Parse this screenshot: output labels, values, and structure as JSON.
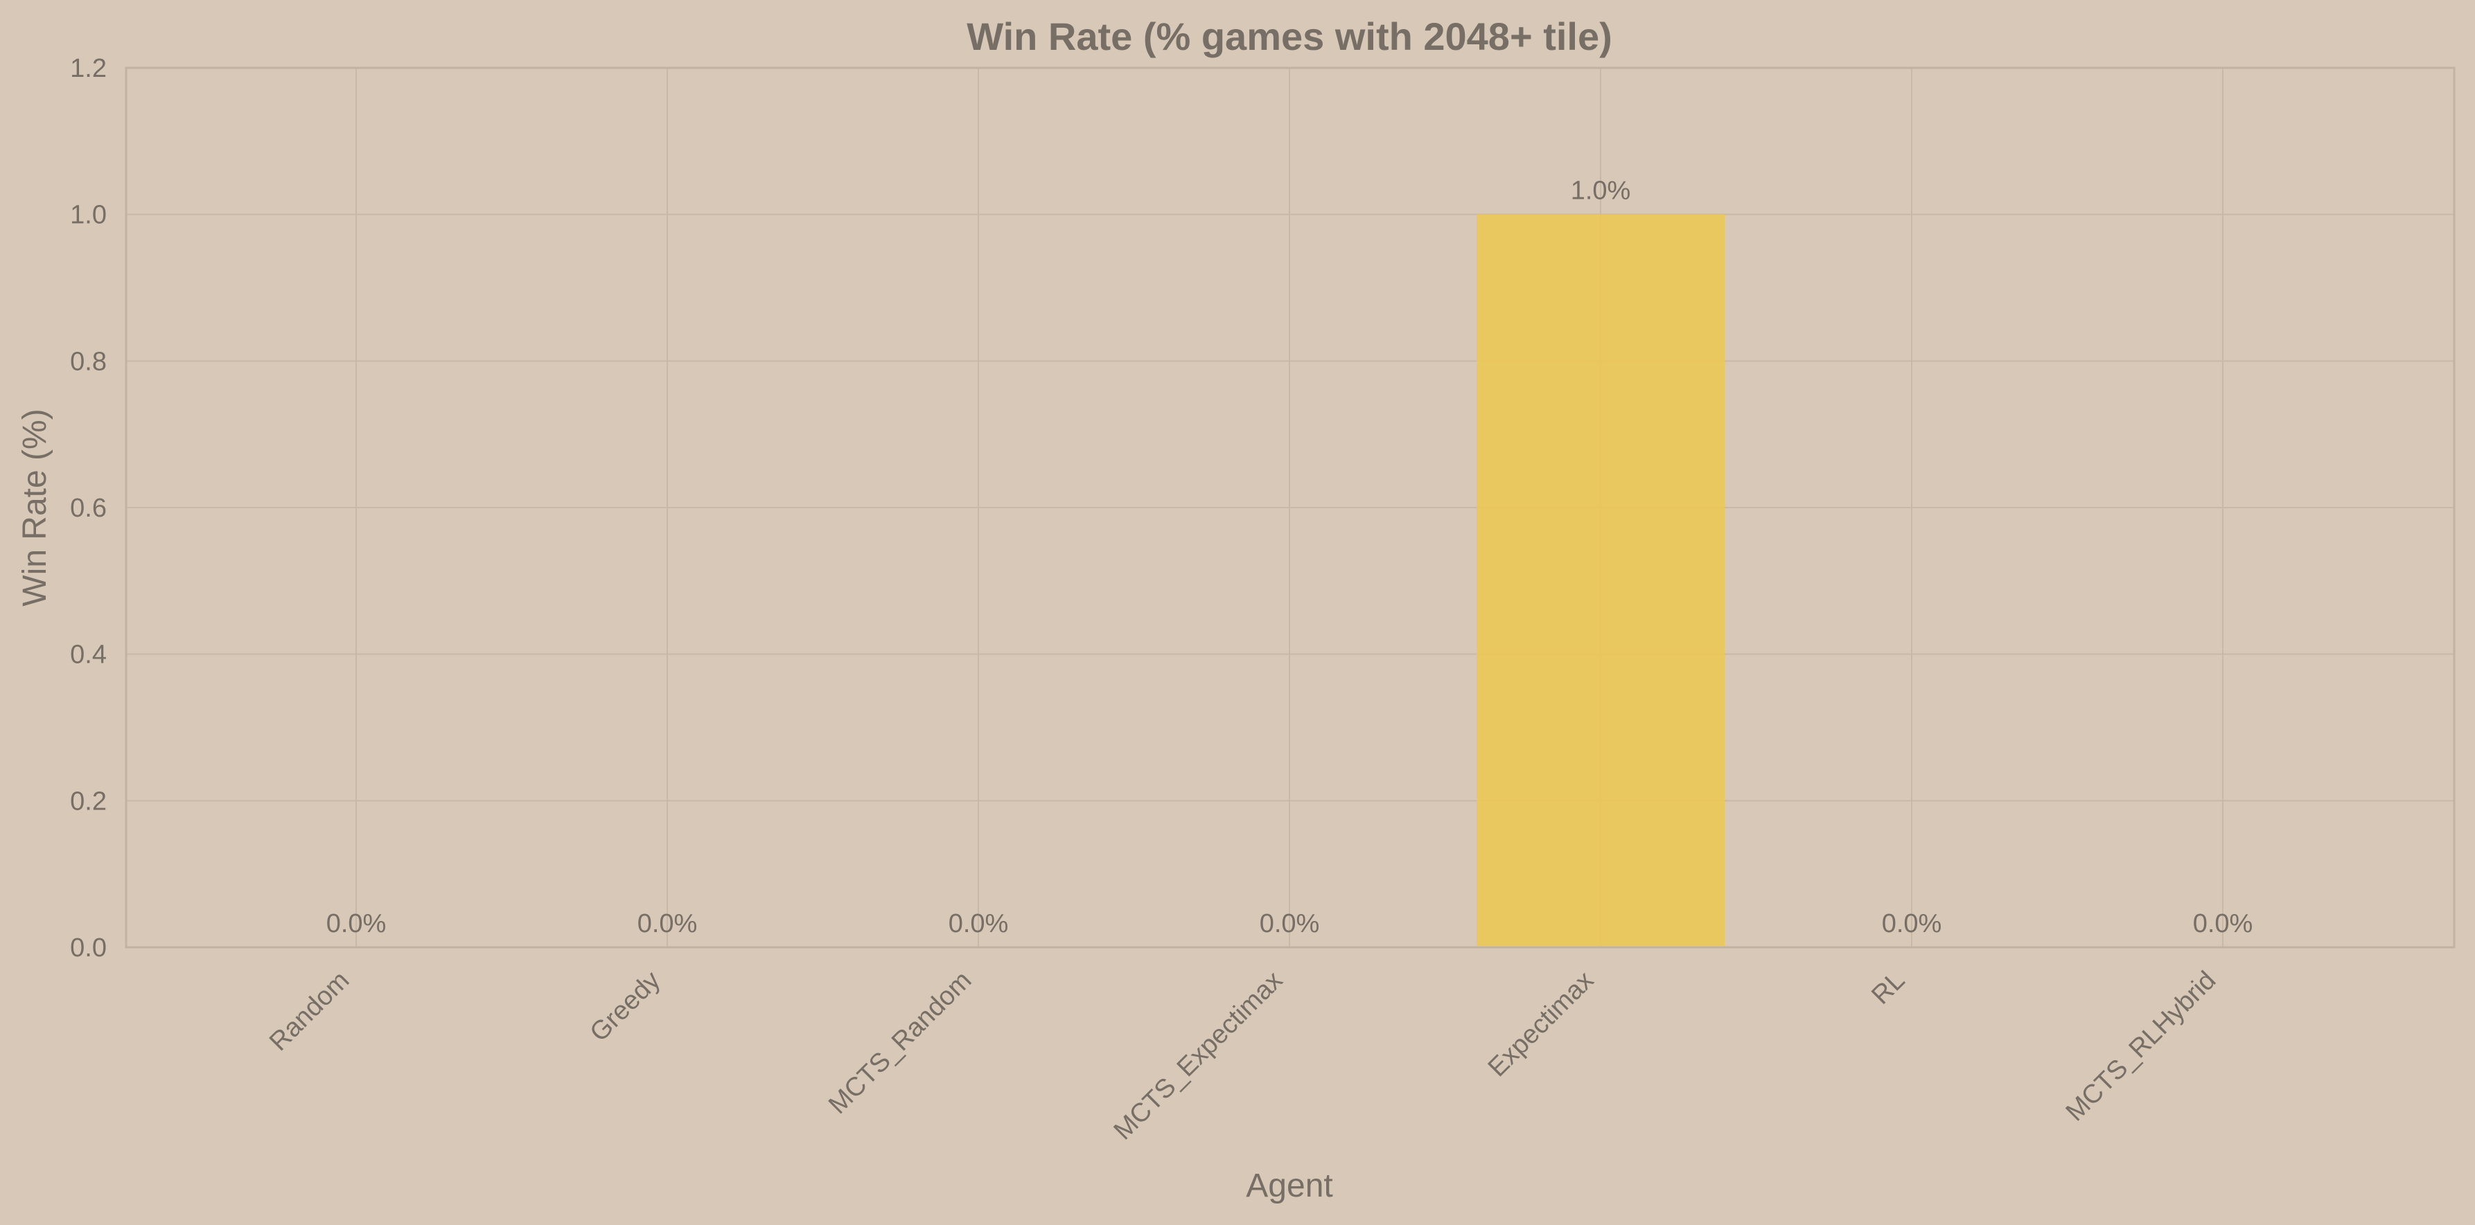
{
  "chart_data": {
    "type": "bar",
    "title": "Win Rate (% games with 2048+ tile)",
    "xlabel": "Agent",
    "ylabel": "Win Rate (%)",
    "categories": [
      "Random",
      "Greedy",
      "MCTS_Random",
      "MCTS_Expectimax",
      "Expectimax",
      "RL",
      "MCTS_RLHybrid"
    ],
    "values": [
      0.0,
      0.0,
      0.0,
      0.0,
      1.0,
      0.0,
      0.0
    ],
    "data_labels": [
      "0.0%",
      "0.0%",
      "0.0%",
      "0.0%",
      "1.0%",
      "0.0%",
      "0.0%"
    ],
    "ylim": [
      0,
      1.2
    ],
    "yticks": [
      0.0,
      0.2,
      0.4,
      0.6,
      0.8,
      1.0,
      1.2
    ],
    "ytick_labels": [
      "0.0",
      "0.2",
      "0.4",
      "0.6",
      "0.8",
      "1.0",
      "1.2"
    ],
    "grid": true,
    "colors": {
      "background": "#d8c8b8",
      "bar": "#edc850",
      "text": "#776e65"
    }
  }
}
